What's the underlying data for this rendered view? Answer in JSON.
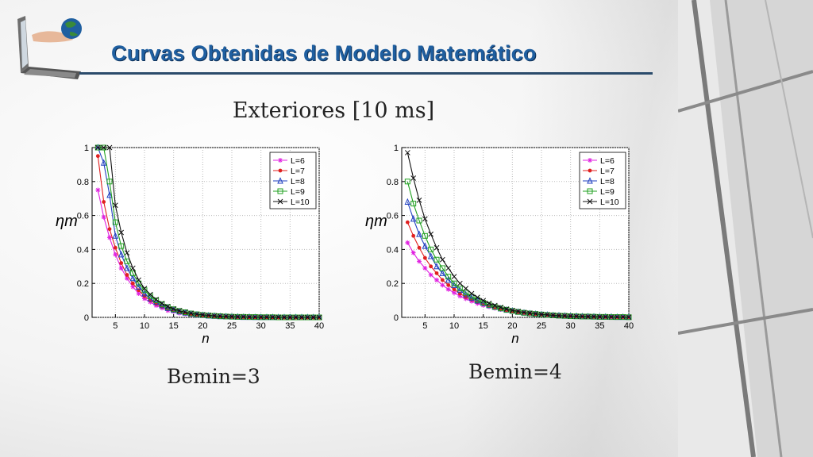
{
  "slide": {
    "title": "Curvas Obtenidas de Modelo Matemático",
    "subtitle": "Exteriores [10 ms]"
  },
  "colors": {
    "title": "#1f5fa0",
    "series": [
      "#e020e0",
      "#e02020",
      "#2040c0",
      "#20a020",
      "#101010"
    ]
  },
  "icons": {
    "logo": "laptop-with-globe-in-hand-icon"
  },
  "chart_data": [
    {
      "type": "line",
      "caption": "Bemin=3",
      "xlabel": "n",
      "ylabel": "ηm",
      "xlim": [
        1,
        40
      ],
      "ylim": [
        0,
        1
      ],
      "xticks": [
        5,
        10,
        15,
        20,
        25,
        30,
        35,
        40
      ],
      "yticks": [
        0,
        0.2,
        0.4,
        0.6,
        0.8,
        1
      ],
      "grid": true,
      "legend_position": "top-right",
      "x": [
        2,
        3,
        4,
        5,
        6,
        7,
        8,
        9,
        10,
        11,
        12,
        13,
        14,
        15,
        16,
        17,
        18,
        19,
        20,
        21,
        22,
        23,
        24,
        25,
        26,
        27,
        28,
        29,
        30,
        31,
        32,
        33,
        34,
        35,
        36,
        37,
        38,
        39,
        40
      ],
      "series": [
        {
          "name": "L=6",
          "marker": "star",
          "values": [
            0.75,
            0.59,
            0.47,
            0.37,
            0.29,
            0.23,
            0.18,
            0.14,
            0.11,
            0.09,
            0.07,
            0.055,
            0.04,
            0.035,
            0.025,
            0.02,
            0.015,
            0.012,
            0.01,
            0.008,
            0.006,
            0.005,
            0.004,
            0.003,
            0.002,
            0.002,
            0.001,
            0.001,
            0.001,
            0.001,
            0.0,
            0.0,
            0.0,
            0.0,
            0.0,
            0.0,
            0.0,
            0.0,
            0.0
          ]
        },
        {
          "name": "L=7",
          "marker": "asterisk",
          "values": [
            0.95,
            0.68,
            0.52,
            0.41,
            0.32,
            0.25,
            0.2,
            0.16,
            0.125,
            0.1,
            0.08,
            0.062,
            0.048,
            0.038,
            0.03,
            0.023,
            0.018,
            0.014,
            0.011,
            0.009,
            0.007,
            0.005,
            0.004,
            0.003,
            0.002,
            0.002,
            0.001,
            0.001,
            0.001,
            0.001,
            0.0,
            0.0,
            0.0,
            0.0,
            0.0,
            0.0,
            0.0,
            0.0,
            0.0
          ]
        },
        {
          "name": "L=8",
          "marker": "triangle",
          "values": [
            1.0,
            0.91,
            0.72,
            0.48,
            0.37,
            0.29,
            0.23,
            0.18,
            0.14,
            0.11,
            0.09,
            0.07,
            0.055,
            0.043,
            0.034,
            0.027,
            0.021,
            0.016,
            0.013,
            0.01,
            0.008,
            0.006,
            0.005,
            0.004,
            0.003,
            0.002,
            0.002,
            0.001,
            0.001,
            0.001,
            0.001,
            0.0,
            0.0,
            0.0,
            0.0,
            0.0,
            0.0,
            0.0,
            0.0
          ]
        },
        {
          "name": "L=9",
          "marker": "square",
          "values": [
            1.0,
            1.0,
            0.8,
            0.56,
            0.42,
            0.33,
            0.26,
            0.2,
            0.16,
            0.125,
            0.1,
            0.078,
            0.061,
            0.048,
            0.038,
            0.03,
            0.023,
            0.018,
            0.014,
            0.011,
            0.009,
            0.007,
            0.005,
            0.004,
            0.003,
            0.003,
            0.002,
            0.002,
            0.001,
            0.001,
            0.001,
            0.0,
            0.0,
            0.0,
            0.0,
            0.0,
            0.0,
            0.0,
            0.0
          ]
        },
        {
          "name": "L=10",
          "marker": "x",
          "values": [
            1.0,
            1.0,
            1.0,
            0.66,
            0.5,
            0.38,
            0.29,
            0.22,
            0.17,
            0.135,
            0.105,
            0.082,
            0.064,
            0.05,
            0.039,
            0.031,
            0.024,
            0.019,
            0.015,
            0.012,
            0.009,
            0.007,
            0.006,
            0.004,
            0.003,
            0.003,
            0.002,
            0.002,
            0.001,
            0.001,
            0.001,
            0.001,
            0.0,
            0.0,
            0.0,
            0.0,
            0.0,
            0.0,
            0.0
          ]
        }
      ]
    },
    {
      "type": "line",
      "caption": "Bemin=4",
      "xlabel": "n",
      "ylabel": "ηm",
      "xlim": [
        1,
        40
      ],
      "ylim": [
        0,
        1
      ],
      "xticks": [
        5,
        10,
        15,
        20,
        25,
        30,
        35,
        40
      ],
      "yticks": [
        0,
        0.2,
        0.4,
        0.6,
        0.8,
        1
      ],
      "grid": true,
      "legend_position": "top-right",
      "x": [
        2,
        3,
        4,
        5,
        6,
        7,
        8,
        9,
        10,
        11,
        12,
        13,
        14,
        15,
        16,
        17,
        18,
        19,
        20,
        21,
        22,
        23,
        24,
        25,
        26,
        27,
        28,
        29,
        30,
        31,
        32,
        33,
        34,
        35,
        36,
        37,
        38,
        39,
        40
      ],
      "series": [
        {
          "name": "L=6",
          "marker": "star",
          "values": [
            0.44,
            0.38,
            0.33,
            0.29,
            0.25,
            0.22,
            0.19,
            0.165,
            0.145,
            0.125,
            0.11,
            0.095,
            0.082,
            0.071,
            0.062,
            0.054,
            0.047,
            0.041,
            0.035,
            0.031,
            0.027,
            0.023,
            0.02,
            0.017,
            0.015,
            0.013,
            0.011,
            0.01,
            0.008,
            0.007,
            0.006,
            0.005,
            0.005,
            0.004,
            0.003,
            0.003,
            0.003,
            0.002,
            0.002
          ]
        },
        {
          "name": "L=7",
          "marker": "asterisk",
          "values": [
            0.56,
            0.48,
            0.41,
            0.35,
            0.3,
            0.26,
            0.22,
            0.19,
            0.165,
            0.14,
            0.12,
            0.105,
            0.09,
            0.077,
            0.066,
            0.057,
            0.049,
            0.042,
            0.036,
            0.031,
            0.027,
            0.023,
            0.02,
            0.017,
            0.015,
            0.013,
            0.011,
            0.009,
            0.008,
            0.007,
            0.006,
            0.005,
            0.004,
            0.004,
            0.003,
            0.003,
            0.002,
            0.002,
            0.002
          ]
        },
        {
          "name": "L=8",
          "marker": "triangle",
          "values": [
            0.68,
            0.58,
            0.49,
            0.42,
            0.36,
            0.3,
            0.26,
            0.22,
            0.19,
            0.16,
            0.135,
            0.115,
            0.098,
            0.084,
            0.071,
            0.061,
            0.052,
            0.044,
            0.038,
            0.032,
            0.027,
            0.023,
            0.02,
            0.017,
            0.015,
            0.012,
            0.011,
            0.009,
            0.008,
            0.007,
            0.006,
            0.005,
            0.004,
            0.003,
            0.003,
            0.003,
            0.002,
            0.002,
            0.002
          ]
        },
        {
          "name": "L=9",
          "marker": "square",
          "values": [
            0.8,
            0.67,
            0.57,
            0.48,
            0.4,
            0.34,
            0.29,
            0.24,
            0.2,
            0.17,
            0.145,
            0.122,
            0.103,
            0.087,
            0.074,
            0.062,
            0.053,
            0.045,
            0.038,
            0.032,
            0.027,
            0.023,
            0.02,
            0.017,
            0.014,
            0.012,
            0.01,
            0.009,
            0.007,
            0.006,
            0.005,
            0.005,
            0.004,
            0.003,
            0.003,
            0.002,
            0.002,
            0.002,
            0.001
          ]
        },
        {
          "name": "L=10",
          "marker": "x",
          "values": [
            0.97,
            0.82,
            0.69,
            0.58,
            0.49,
            0.41,
            0.34,
            0.29,
            0.24,
            0.2,
            0.17,
            0.14,
            0.118,
            0.099,
            0.083,
            0.07,
            0.059,
            0.049,
            0.041,
            0.035,
            0.029,
            0.025,
            0.021,
            0.017,
            0.015,
            0.012,
            0.01,
            0.009,
            0.007,
            0.006,
            0.005,
            0.004,
            0.004,
            0.003,
            0.003,
            0.002,
            0.002,
            0.002,
            0.001
          ]
        }
      ]
    }
  ]
}
